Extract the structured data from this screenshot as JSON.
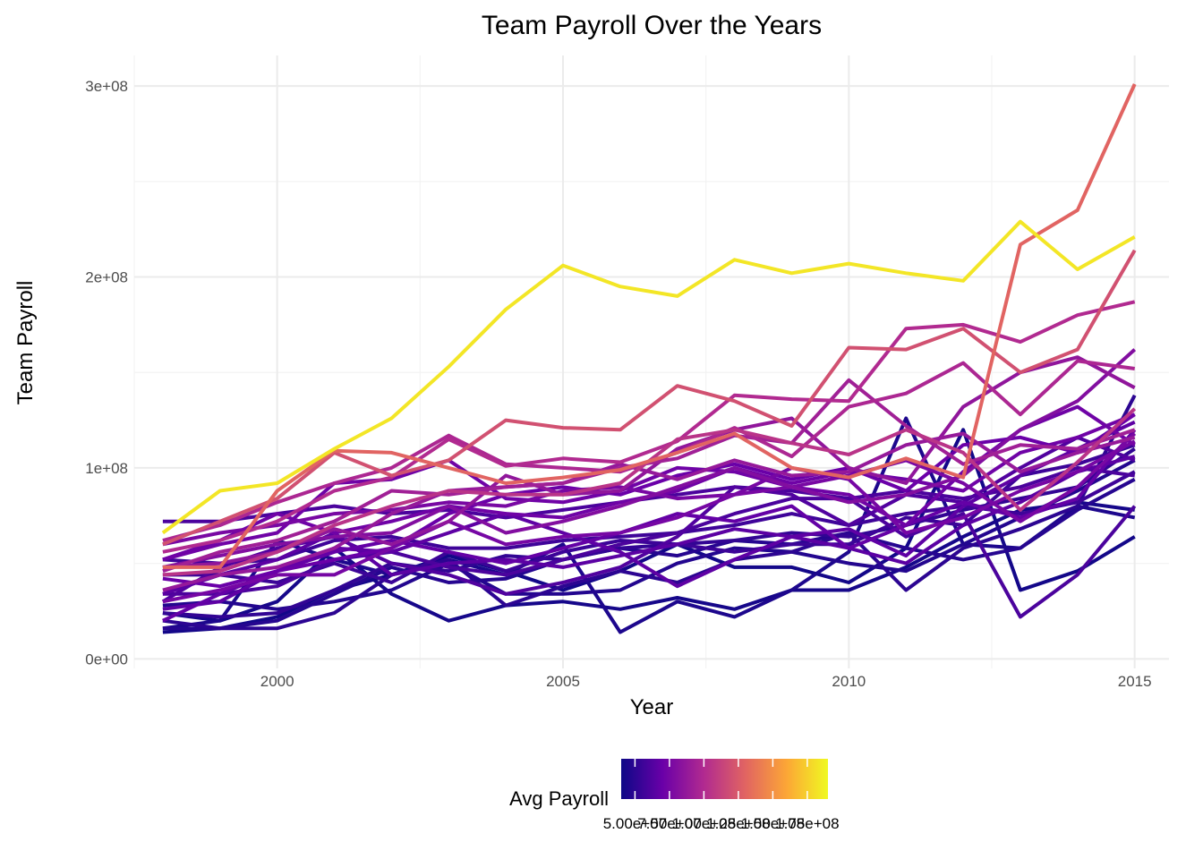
{
  "chart_data": {
    "type": "line",
    "title": "Team Payroll Over the Years",
    "xlabel": "Year",
    "ylabel": "Team Payroll",
    "xlim": [
      1997.5,
      2015.6
    ],
    "ylim": [
      -5000000,
      316000000
    ],
    "x_ticks": [
      2000,
      2005,
      2010,
      2015
    ],
    "x_tick_labels": [
      "2000",
      "2005",
      "2010",
      "2015"
    ],
    "y_ticks": [
      0,
      100000000,
      200000000,
      300000000
    ],
    "y_tick_labels": [
      "0e+00",
      "1e+08",
      "2e+08",
      "3e+08"
    ],
    "grid": true,
    "legend": {
      "title": "Avg Payroll",
      "position": "bottom",
      "range": [
        40000000,
        190000000
      ],
      "breaks": [
        50000000,
        75000000,
        100000000,
        125000000,
        150000000,
        175000000
      ],
      "break_labels": [
        "5.00e+07",
        "7.50e+07",
        "1.00e+08",
        "1.25e+08",
        "1.50e+08",
        "1.75e+08"
      ],
      "colors": [
        "#0d0887",
        "#6a00a8",
        "#b12a90",
        "#e16462",
        "#fca636",
        "#f0f921"
      ]
    },
    "x": [
      1998,
      1999,
      2000,
      2001,
      2002,
      2003,
      2004,
      2005,
      2006,
      2007,
      2008,
      2009,
      2010,
      2011,
      2012,
      2013,
      2014,
      2015
    ],
    "series": [
      {
        "avg": 183000000,
        "values": [
          66000000,
          88000000,
          92000000,
          110000000,
          126000000,
          153000000,
          183000000,
          206000000,
          195000000,
          190000000,
          209000000,
          202000000,
          207000000,
          202000000,
          198000000,
          229000000,
          204000000,
          221000000
        ]
      },
      {
        "avg": 130000000,
        "values": [
          48000000,
          48000000,
          88000000,
          109000000,
          108000000,
          100000000,
          92000000,
          95000000,
          99000000,
          108000000,
          118000000,
          100000000,
          95000000,
          105000000,
          95000000,
          217000000,
          235000000,
          301000000
        ]
      },
      {
        "avg": 120000000,
        "values": [
          60000000,
          72000000,
          84000000,
          108000000,
          96000000,
          104000000,
          125000000,
          121000000,
          120000000,
          143000000,
          135000000,
          122000000,
          163000000,
          162000000,
          173000000,
          150000000,
          162000000,
          214000000
        ]
      },
      {
        "avg": 100000000,
        "values": [
          56000000,
          62000000,
          72000000,
          88000000,
          95000000,
          115000000,
          101000000,
          105000000,
          103000000,
          114000000,
          138000000,
          136000000,
          135000000,
          173000000,
          175000000,
          166000000,
          180000000,
          187000000
        ]
      },
      {
        "avg": 98000000,
        "values": [
          62000000,
          70000000,
          82000000,
          92000000,
          100000000,
          117000000,
          102000000,
          100000000,
          98000000,
          108000000,
          121000000,
          106000000,
          132000000,
          139000000,
          155000000,
          128000000,
          156000000,
          152000000
        ]
      },
      {
        "avg": 105000000,
        "values": [
          44000000,
          46000000,
          56000000,
          70000000,
          80000000,
          88000000,
          86000000,
          86000000,
          92000000,
          115000000,
          120000000,
          113000000,
          107000000,
          120000000,
          108000000,
          78000000,
          103000000,
          131000000
        ]
      },
      {
        "avg": 93000000,
        "values": [
          46000000,
          56000000,
          62000000,
          72000000,
          88000000,
          86000000,
          90000000,
          92000000,
          100000000,
          105000000,
          117000000,
          113000000,
          146000000,
          122000000,
          102000000,
          112000000,
          110000000,
          120000000
        ]
      },
      {
        "avg": 86000000,
        "values": [
          48000000,
          50000000,
          56000000,
          68000000,
          60000000,
          72000000,
          96000000,
          86000000,
          88000000,
          110000000,
          120000000,
          126000000,
          100000000,
          92000000,
          132000000,
          150000000,
          158000000,
          142000000
        ]
      },
      {
        "avg": 88000000,
        "values": [
          36000000,
          44000000,
          48000000,
          58000000,
          76000000,
          88000000,
          90000000,
          92000000,
          102000000,
          94000000,
          104000000,
          96000000,
          98000000,
          112000000,
          118000000,
          98000000,
          108000000,
          116000000
        ]
      },
      {
        "avg": 76000000,
        "values": [
          60000000,
          66000000,
          70000000,
          76000000,
          78000000,
          82000000,
          80000000,
          88000000,
          90000000,
          84000000,
          86000000,
          90000000,
          96000000,
          104000000,
          92000000,
          72000000,
          90000000,
          118000000
        ]
      },
      {
        "avg": 72000000,
        "values": [
          52000000,
          62000000,
          76000000,
          66000000,
          72000000,
          80000000,
          76000000,
          74000000,
          82000000,
          88000000,
          100000000,
          92000000,
          98000000,
          94000000,
          88000000,
          108000000,
          116000000,
          128000000
        ]
      },
      {
        "avg": 72000000,
        "values": [
          52000000,
          60000000,
          66000000,
          92000000,
          94000000,
          104000000,
          84000000,
          82000000,
          88000000,
          100000000,
          98000000,
          90000000,
          86000000,
          70000000,
          98000000,
          120000000,
          132000000,
          112000000
        ]
      },
      {
        "avg": 80000000,
        "values": [
          48000000,
          54000000,
          60000000,
          64000000,
          66000000,
          80000000,
          66000000,
          72000000,
          80000000,
          90000000,
          100000000,
          90000000,
          82000000,
          86000000,
          96000000,
          120000000,
          135000000,
          162000000
        ]
      },
      {
        "avg": 70000000,
        "values": [
          42000000,
          38000000,
          46000000,
          52000000,
          58000000,
          76000000,
          86000000,
          90000000,
          86000000,
          96000000,
          102000000,
          94000000,
          100000000,
          88000000,
          112000000,
          116000000,
          108000000,
          128000000
        ]
      },
      {
        "avg": 75000000,
        "values": [
          30000000,
          36000000,
          44000000,
          44000000,
          58000000,
          72000000,
          60000000,
          64000000,
          66000000,
          74000000,
          86000000,
          100000000,
          94000000,
          66000000,
          74000000,
          88000000,
          98000000,
          114000000
        ]
      },
      {
        "avg": 68000000,
        "values": [
          20000000,
          34000000,
          46000000,
          56000000,
          62000000,
          56000000,
          50000000,
          58000000,
          66000000,
          76000000,
          72000000,
          80000000,
          58000000,
          70000000,
          82000000,
          74000000,
          84000000,
          120000000
        ]
      },
      {
        "avg": 66000000,
        "values": [
          26000000,
          30000000,
          46000000,
          58000000,
          56000000,
          66000000,
          76000000,
          66000000,
          56000000,
          38000000,
          52000000,
          64000000,
          68000000,
          54000000,
          80000000,
          96000000,
          110000000,
          124000000
        ]
      },
      {
        "avg": 65000000,
        "values": [
          34000000,
          44000000,
          52000000,
          66000000,
          44000000,
          50000000,
          52000000,
          48000000,
          54000000,
          60000000,
          68000000,
          64000000,
          58000000,
          50000000,
          70000000,
          82000000,
          98000000,
          106000000
        ]
      },
      {
        "avg": 60000000,
        "values": [
          72000000,
          72000000,
          76000000,
          80000000,
          76000000,
          78000000,
          74000000,
          78000000,
          82000000,
          86000000,
          90000000,
          88000000,
          84000000,
          88000000,
          84000000,
          90000000,
          100000000,
          96000000
        ]
      },
      {
        "avg": 60000000,
        "values": [
          34000000,
          34000000,
          38000000,
          52000000,
          56000000,
          48000000,
          44000000,
          52000000,
          60000000,
          66000000,
          76000000,
          84000000,
          84000000,
          64000000,
          76000000,
          22000000,
          44000000,
          80000000
        ]
      },
      {
        "avg": 62000000,
        "values": [
          30000000,
          48000000,
          58000000,
          64000000,
          50000000,
          44000000,
          34000000,
          40000000,
          48000000,
          64000000,
          90000000,
          86000000,
          70000000,
          86000000,
          82000000,
          100000000,
          116000000,
          104000000
        ]
      },
      {
        "avg": 56000000,
        "values": [
          52000000,
          50000000,
          52000000,
          62000000,
          64000000,
          58000000,
          58000000,
          62000000,
          64000000,
          66000000,
          70000000,
          76000000,
          70000000,
          76000000,
          80000000,
          76000000,
          82000000,
          98000000
        ]
      },
      {
        "avg": 52000000,
        "values": [
          24000000,
          22000000,
          24000000,
          36000000,
          50000000,
          46000000,
          54000000,
          52000000,
          58000000,
          60000000,
          62000000,
          66000000,
          64000000,
          70000000,
          78000000,
          84000000,
          90000000,
          110000000
        ]
      },
      {
        "avg": 50000000,
        "values": [
          20000000,
          16000000,
          16000000,
          24000000,
          44000000,
          52000000,
          28000000,
          38000000,
          46000000,
          40000000,
          52000000,
          56000000,
          66000000,
          36000000,
          58000000,
          68000000,
          80000000,
          138000000
        ]
      },
      {
        "avg": 55000000,
        "values": [
          44000000,
          44000000,
          40000000,
          50000000,
          40000000,
          56000000,
          46000000,
          56000000,
          62000000,
          60000000,
          56000000,
          60000000,
          60000000,
          74000000,
          70000000,
          96000000,
          102000000,
          112000000
        ]
      },
      {
        "avg": 48000000,
        "values": [
          16000000,
          16000000,
          20000000,
          34000000,
          48000000,
          40000000,
          42000000,
          52000000,
          58000000,
          54000000,
          62000000,
          60000000,
          66000000,
          58000000,
          52000000,
          58000000,
          78000000,
          94000000
        ]
      },
      {
        "avg": 47000000,
        "values": [
          28000000,
          30000000,
          26000000,
          30000000,
          36000000,
          50000000,
          34000000,
          34000000,
          36000000,
          50000000,
          58000000,
          56000000,
          50000000,
          46000000,
          60000000,
          74000000,
          88000000,
          104000000
        ]
      },
      {
        "avg": 42000000,
        "values": [
          14000000,
          16000000,
          22000000,
          36000000,
          44000000,
          54000000,
          46000000,
          36000000,
          46000000,
          60000000,
          48000000,
          48000000,
          40000000,
          58000000,
          120000000,
          36000000,
          46000000,
          64000000
        ]
      },
      {
        "avg": 43000000,
        "values": [
          24000000,
          20000000,
          30000000,
          58000000,
          34000000,
          20000000,
          28000000,
          30000000,
          26000000,
          32000000,
          26000000,
          36000000,
          36000000,
          48000000,
          64000000,
          78000000,
          82000000,
          78000000
        ]
      },
      {
        "avg": 45000000,
        "values": [
          16000000,
          20000000,
          62000000,
          52000000,
          44000000,
          52000000,
          44000000,
          60000000,
          14000000,
          30000000,
          22000000,
          36000000,
          56000000,
          126000000,
          60000000,
          58000000,
          80000000,
          74000000
        ]
      }
    ]
  }
}
